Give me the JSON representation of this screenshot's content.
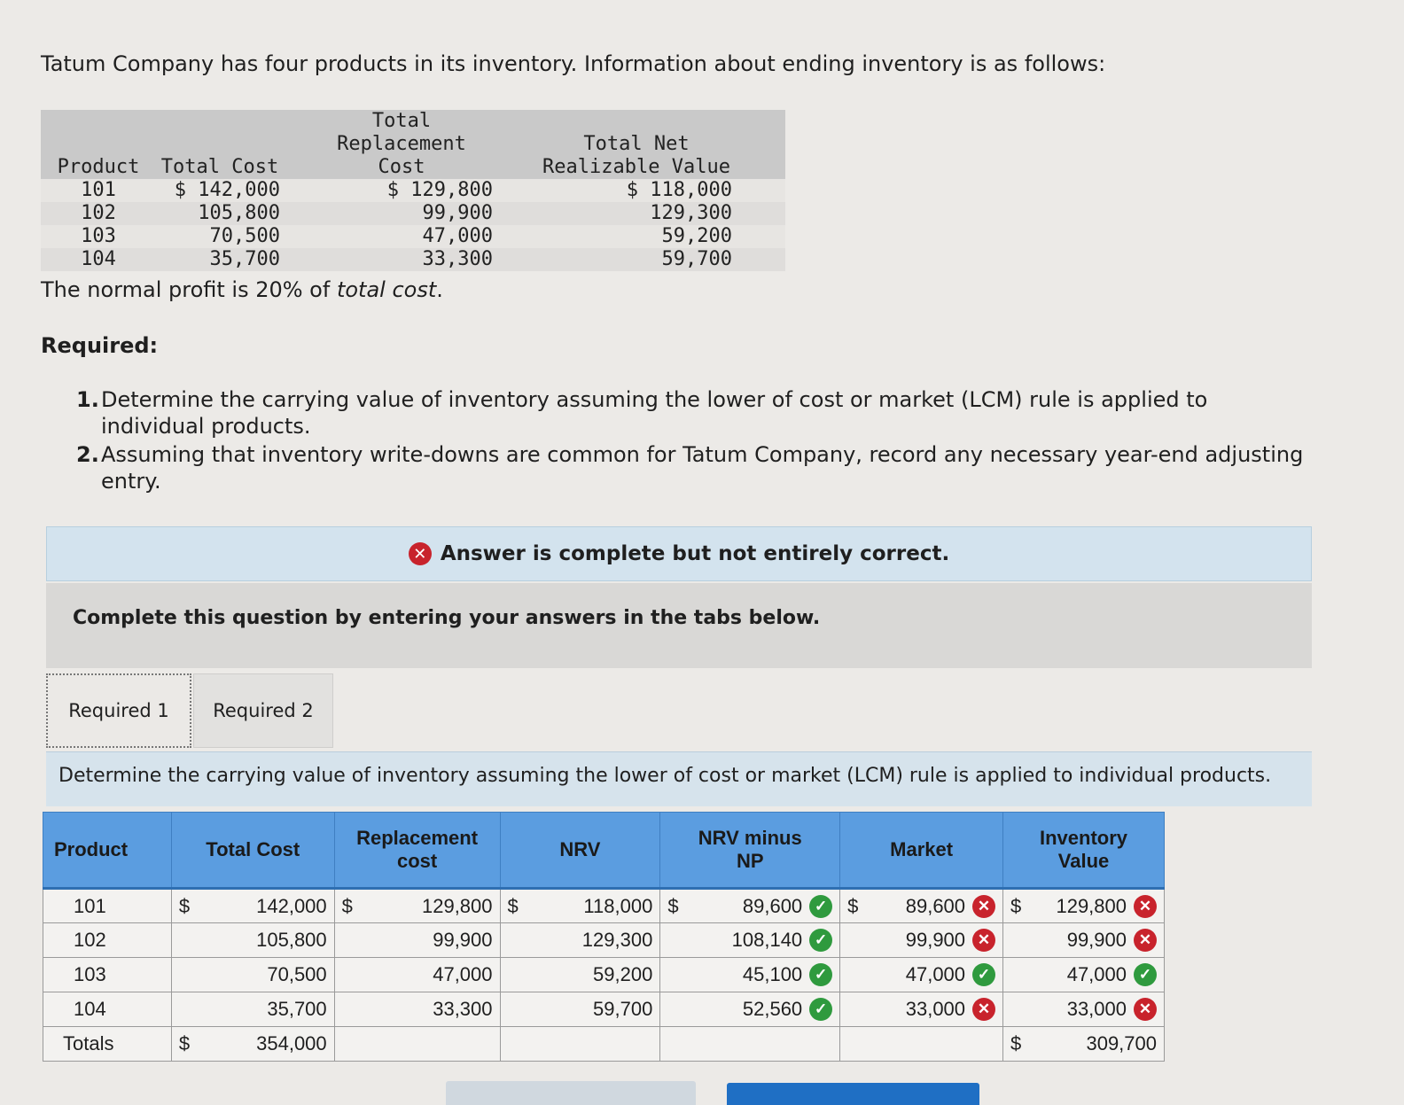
{
  "intro": "Tatum Company has four products in its inventory. Information about ending inventory is as follows:",
  "given_table": {
    "headers": {
      "product": "Product",
      "total_cost": "Total Cost",
      "replacement_line1": "Total Replacement",
      "replacement_line2": "Cost",
      "nrv_line1": "Total Net",
      "nrv_line2": "Realizable Value"
    },
    "rows": [
      {
        "product": "101",
        "total_cost": "$ 142,000",
        "replacement": "$ 129,800",
        "nrv": "$ 118,000"
      },
      {
        "product": "102",
        "total_cost": "105,800",
        "replacement": "99,900",
        "nrv": "129,300"
      },
      {
        "product": "103",
        "total_cost": "70,500",
        "replacement": "47,000",
        "nrv": "59,200"
      },
      {
        "product": "104",
        "total_cost": "35,700",
        "replacement": "33,300",
        "nrv": "59,700"
      }
    ]
  },
  "normal_profit": {
    "before": "The normal profit is 20% of ",
    "emph": "total cost",
    "after": "."
  },
  "required_heading": "Required:",
  "requirements": [
    {
      "num": "1.",
      "text": "Determine the carrying value of inventory assuming the lower of cost or market (LCM) rule is applied to individual products."
    },
    {
      "num": "2.",
      "text": "Assuming that inventory write-downs are common for Tatum Company, record any necessary year-end adjusting entry."
    }
  ],
  "banner": {
    "text": "Answer is complete but not entirely correct.",
    "icon": "x-circle-icon",
    "color": "#c8232c"
  },
  "complete_prompt": "Complete this question by entering your answers in the tabs below.",
  "tabs": [
    {
      "label": "Required 1"
    },
    {
      "label": "Required 2"
    }
  ],
  "instruction": "Determine the carrying value of inventory assuming the lower of cost or market (LCM) rule is applied to individual products.",
  "answer_table": {
    "headers": {
      "product": "Product",
      "total_cost": "Total Cost",
      "replacement_line1": "Replacement",
      "replacement_line2": "cost",
      "nrv": "NRV",
      "nrv_np_line1": "NRV minus",
      "nrv_np_line2": "NP",
      "market": "Market",
      "inventory_line1": "Inventory",
      "inventory_line2": "Value"
    },
    "currency": "$",
    "rows": [
      {
        "product": "101",
        "total_cost": "142,000",
        "replacement": "129,800",
        "nrv": "118,000",
        "nrv_np": "89,600",
        "nrv_np_status": "correct",
        "market": "89,600",
        "market_status": "incorrect",
        "inventory": "129,800",
        "inventory_status": "incorrect"
      },
      {
        "product": "102",
        "total_cost": "105,800",
        "replacement": "99,900",
        "nrv": "129,300",
        "nrv_np": "108,140",
        "nrv_np_status": "correct",
        "market": "99,900",
        "market_status": "incorrect",
        "inventory": "99,900",
        "inventory_status": "incorrect"
      },
      {
        "product": "103",
        "total_cost": "70,500",
        "replacement": "47,000",
        "nrv": "59,200",
        "nrv_np": "45,100",
        "nrv_np_status": "correct",
        "market": "47,000",
        "market_status": "correct",
        "inventory": "47,000",
        "inventory_status": "correct"
      },
      {
        "product": "104",
        "total_cost": "35,700",
        "replacement": "33,300",
        "nrv": "59,700",
        "nrv_np": "52,560",
        "nrv_np_status": "correct",
        "market": "33,000",
        "market_status": "incorrect",
        "inventory": "33,000",
        "inventory_status": "incorrect"
      }
    ],
    "totals": {
      "label": "Totals",
      "total_cost": "354,000",
      "inventory": "309,700"
    }
  },
  "colors": {
    "correct": "#2f9a3e",
    "incorrect": "#c8232c",
    "header_bg": "#5b9de0"
  }
}
